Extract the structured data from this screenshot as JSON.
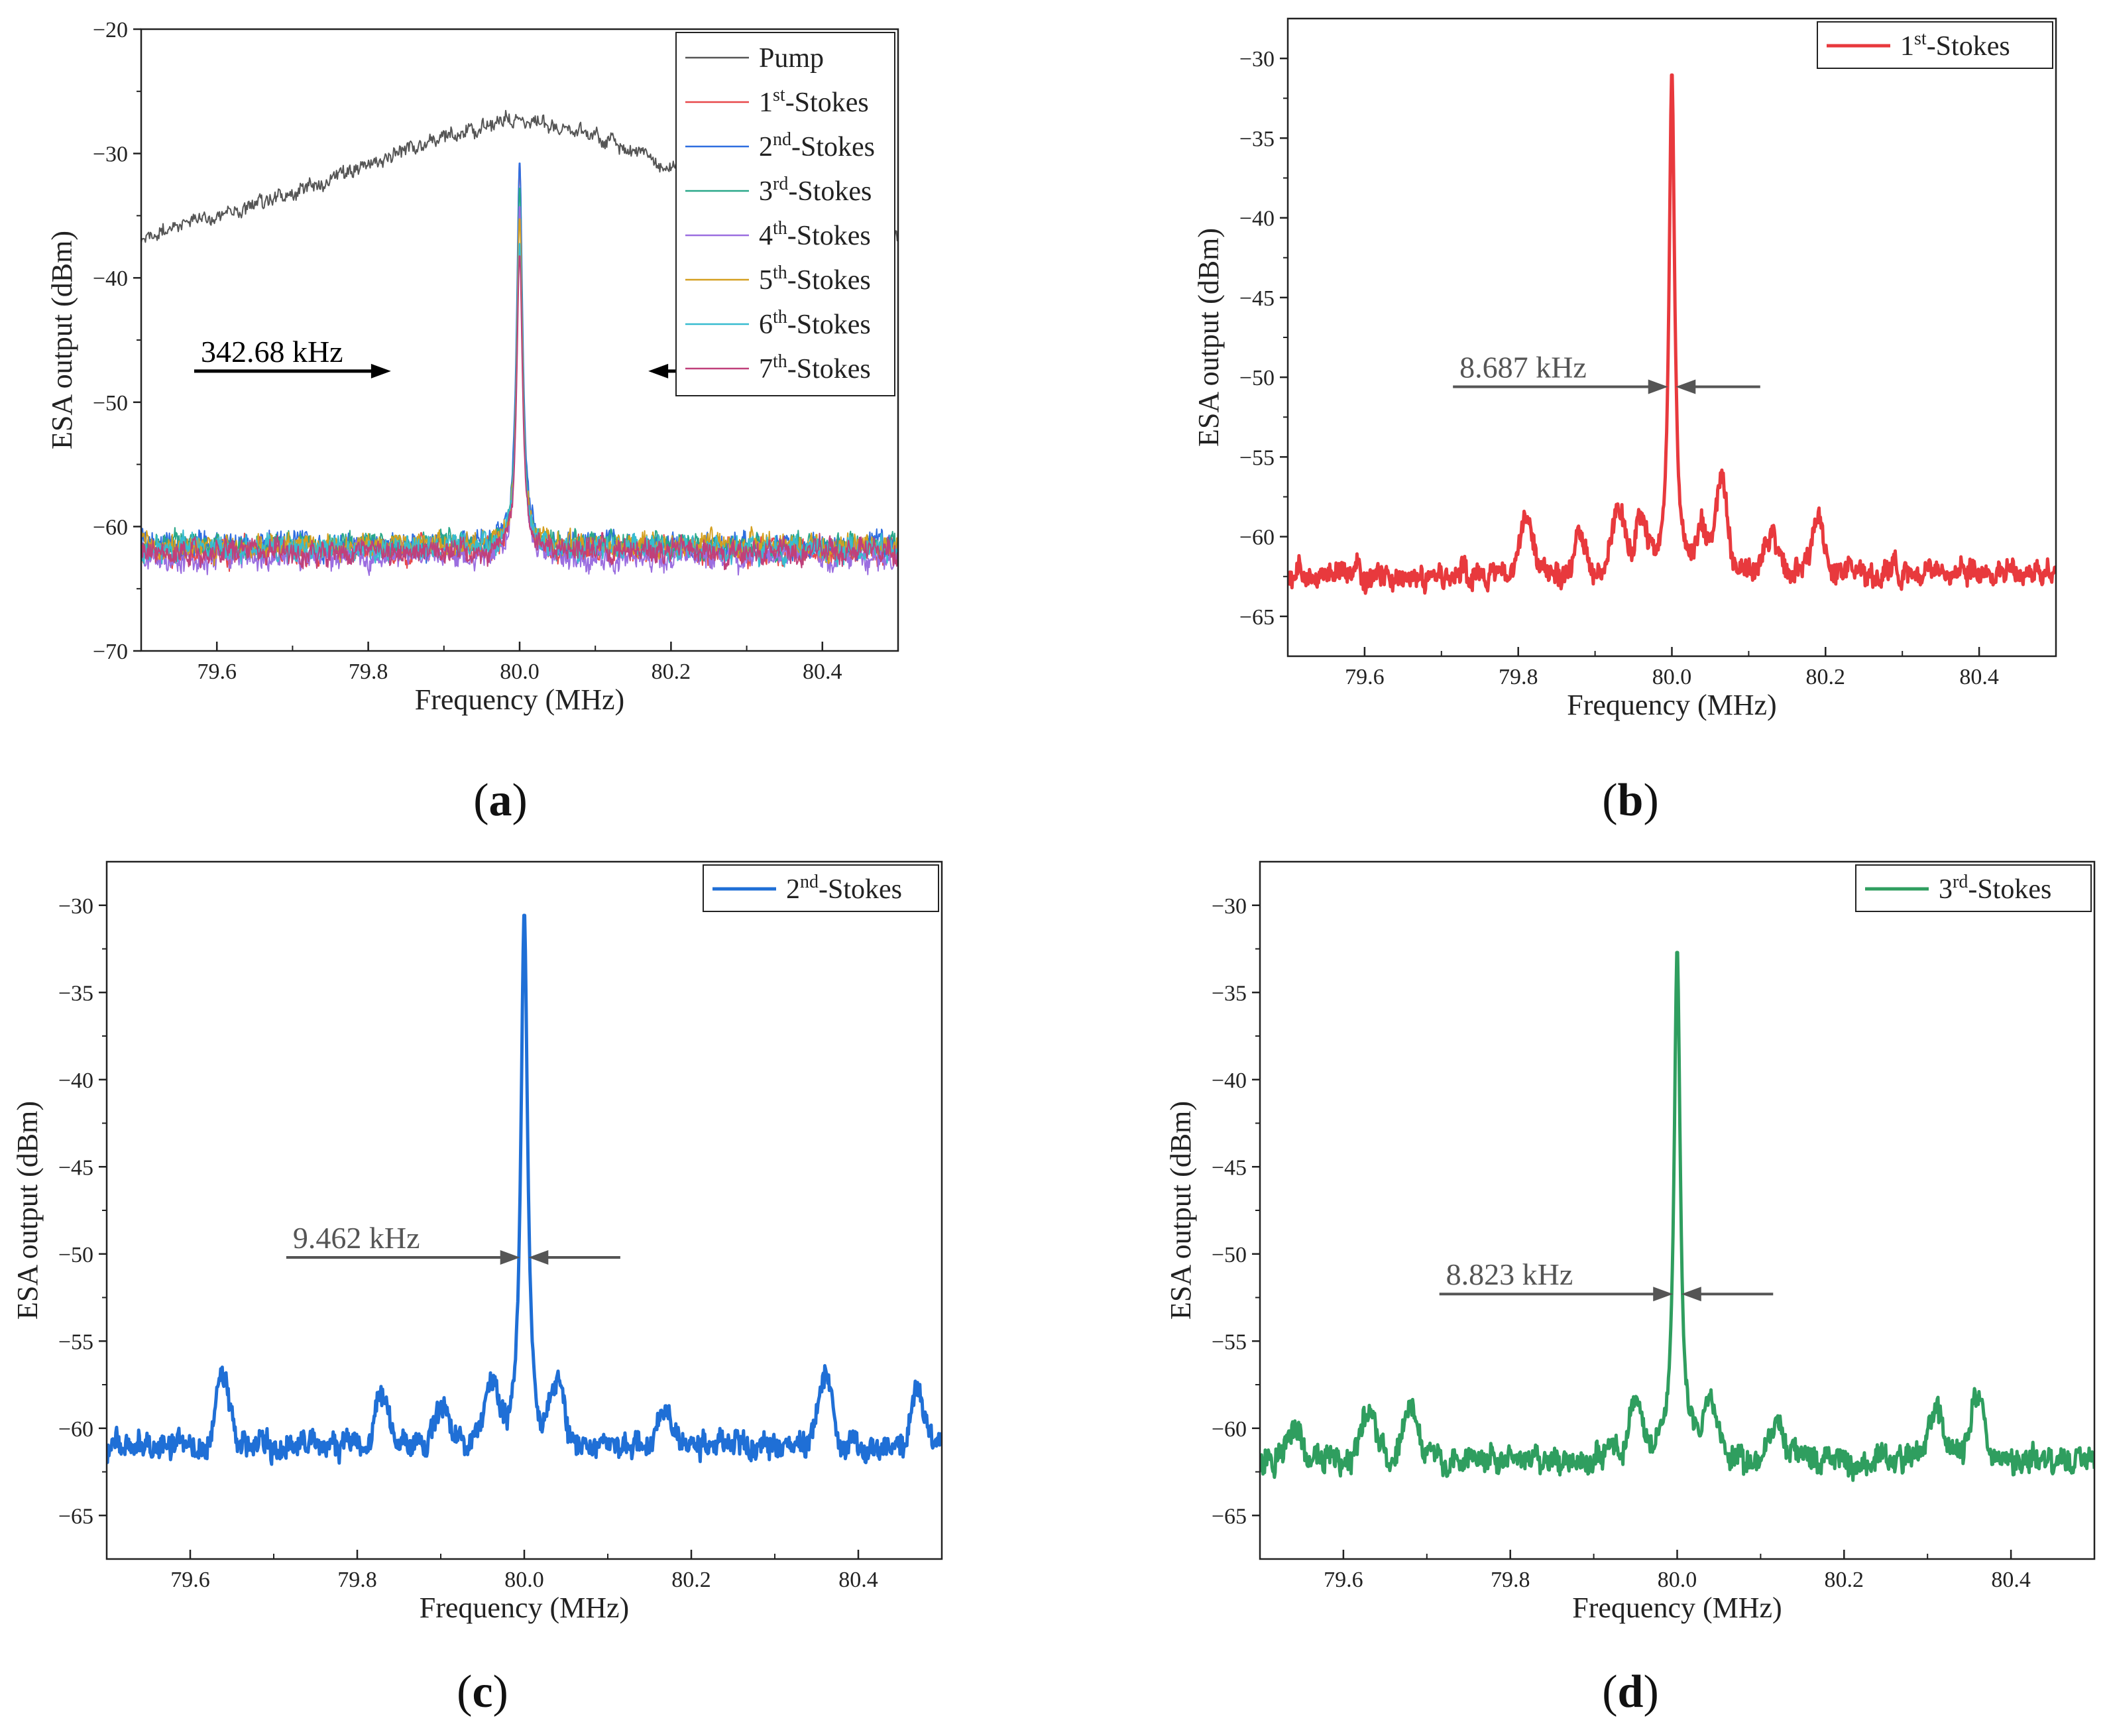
{
  "chart_data": [
    {
      "panel": "a",
      "panel_label_prefix": "(",
      "panel_label_letter": "a",
      "panel_label_suffix": ")",
      "type": "line",
      "xlabel": "Frequency (MHz)",
      "ylabel": "ESA output (dBm)",
      "xlim": [
        79.5,
        80.5
      ],
      "ylim": [
        -70,
        -20
      ],
      "xticks": [
        79.6,
        79.8,
        80.0,
        80.2,
        80.4
      ],
      "xtick_labels": [
        "79.6",
        "79.8",
        "80.0",
        "80.2",
        "80.4"
      ],
      "yticks": [
        -70,
        -60,
        -50,
        -40,
        -30,
        -20
      ],
      "ytick_labels": [
        "−70",
        "−60",
        "−50",
        "−40",
        "−30",
        "−20"
      ],
      "legend_position": "top-right",
      "annotation": {
        "text": "342.68 kHz",
        "level": -47.5,
        "left": 79.83,
        "right": 80.17,
        "color": "#000000"
      },
      "series": [
        {
          "name": "Pump",
          "base": "Pump",
          "sup": "",
          "suffix": "",
          "color": "#555555",
          "kind": "lorentz",
          "peak": -27.5,
          "center": 80.0,
          "fwhm": 0.3427,
          "floor": null,
          "noise": 0.9
        },
        {
          "name": "1st-Stokes",
          "base": "1",
          "sup": "st",
          "suffix": "-Stokes",
          "color": "#e8484a",
          "kind": "spike",
          "peak": -30.5,
          "center": 80.0,
          "fwhm": 0.0087,
          "floor": -62,
          "noise": 1.0
        },
        {
          "name": "2nd-Stokes",
          "base": "2",
          "sup": "nd",
          "suffix": "-Stokes",
          "color": "#2f6ee0",
          "kind": "spike",
          "peak": -30.5,
          "center": 80.0,
          "fwhm": 0.0095,
          "floor": -61.5,
          "noise": 1.0
        },
        {
          "name": "3rd-Stokes",
          "base": "3",
          "sup": "rd",
          "suffix": "-Stokes",
          "color": "#2aa889",
          "kind": "spike",
          "peak": -32.5,
          "center": 80.0,
          "fwhm": 0.0088,
          "floor": -61.5,
          "noise": 1.0
        },
        {
          "name": "4th-Stokes",
          "base": "4",
          "sup": "th",
          "suffix": "-Stokes",
          "color": "#9b6ee0",
          "kind": "spike",
          "peak": -34,
          "center": 80.0,
          "fwhm": 0.009,
          "floor": -62.5,
          "noise": 1.0
        },
        {
          "name": "5th-Stokes",
          "base": "5",
          "sup": "th",
          "suffix": "-Stokes",
          "color": "#d4a020",
          "kind": "spike",
          "peak": -35,
          "center": 80.0,
          "fwhm": 0.009,
          "floor": -61.5,
          "noise": 1.0
        },
        {
          "name": "6th-Stokes",
          "base": "6",
          "sup": "th",
          "suffix": "-Stokes",
          "color": "#38bcd0",
          "kind": "spike",
          "peak": -37,
          "center": 80.0,
          "fwhm": 0.009,
          "floor": -61.8,
          "noise": 1.0
        },
        {
          "name": "7th-Stokes",
          "base": "7",
          "sup": "th",
          "suffix": "-Stokes",
          "color": "#c0407a",
          "kind": "spike",
          "peak": -38,
          "center": 80.0,
          "fwhm": 0.009,
          "floor": -62,
          "noise": 1.0
        }
      ]
    },
    {
      "panel": "b",
      "panel_label_prefix": "(",
      "panel_label_letter": "b",
      "panel_label_suffix": ")",
      "type": "line",
      "xlabel": "Frequency (MHz)",
      "ylabel": "ESA output (dBm)",
      "xlim": [
        79.5,
        80.5
      ],
      "ylim": [
        -67.5,
        -27.5
      ],
      "xticks": [
        79.6,
        79.8,
        80.0,
        80.2,
        80.4
      ],
      "xtick_labels": [
        "79.6",
        "79.8",
        "80.0",
        "80.2",
        "80.4"
      ],
      "yticks": [
        -65,
        -60,
        -55,
        -50,
        -45,
        -40,
        -35,
        -30
      ],
      "ytick_labels": [
        "−65",
        "−60",
        "−55",
        "−50",
        "−45",
        "−40",
        "−35",
        "−30"
      ],
      "legend_position": "top-right",
      "annotation": {
        "text": "8.687 kHz",
        "level": -50.6,
        "left": 79.995,
        "right": 80.005,
        "color": "#555555"
      },
      "series": [
        {
          "name": "1st-Stokes",
          "base": "1",
          "sup": "st",
          "suffix": "-Stokes",
          "color": "#e8393d",
          "kind": "spike",
          "peak": -30.7,
          "center": 80.0,
          "fwhm": 0.0087,
          "floor": -62.3,
          "noise": 0.8,
          "bumps": [
            [
              79.81,
              3.6
            ],
            [
              79.88,
              2.5
            ],
            [
              79.93,
              4.2
            ],
            [
              79.96,
              3.6
            ],
            [
              80.04,
              2.5
            ],
            [
              80.065,
              5.6
            ],
            [
              80.13,
              2.5
            ],
            [
              80.19,
              3.0
            ]
          ]
        }
      ]
    },
    {
      "panel": "c",
      "panel_label_prefix": "(",
      "panel_label_letter": "c",
      "panel_label_suffix": ")",
      "type": "line",
      "xlabel": "Frequency (MHz)",
      "ylabel": "ESA output (dBm)",
      "xlim": [
        79.5,
        80.5
      ],
      "ylim": [
        -67.5,
        -27.5
      ],
      "xticks": [
        79.6,
        79.8,
        80.0,
        80.2,
        80.4
      ],
      "xtick_labels": [
        "79.6",
        "79.8",
        "80.0",
        "80.2",
        "80.4"
      ],
      "yticks": [
        -65,
        -60,
        -55,
        -50,
        -45,
        -40,
        -35,
        -30
      ],
      "ytick_labels": [
        "−65",
        "−60",
        "−55",
        "−50",
        "−45",
        "−40",
        "−35",
        "−30"
      ],
      "legend_position": "top-right",
      "annotation": {
        "text": "9.462 kHz",
        "level": -50.2,
        "left": 79.995,
        "right": 80.005,
        "color": "#555555"
      },
      "series": [
        {
          "name": "2nd-Stokes",
          "base": "2",
          "sup": "nd",
          "suffix": "-Stokes",
          "color": "#1f6fd6",
          "kind": "spike",
          "peak": -30.3,
          "center": 80.0,
          "fwhm": 0.0095,
          "floor": -61.0,
          "noise": 0.8,
          "bumps": [
            [
              79.64,
              4.0
            ],
            [
              79.83,
              3.0
            ],
            [
              79.9,
              2.0
            ],
            [
              79.96,
              3.5
            ],
            [
              80.04,
              3.5
            ],
            [
              80.17,
              2.0
            ],
            [
              80.36,
              4.0
            ],
            [
              80.47,
              3.0
            ]
          ]
        }
      ]
    },
    {
      "panel": "d",
      "panel_label_prefix": "(",
      "panel_label_letter": "d",
      "panel_label_suffix": ")",
      "type": "line",
      "xlabel": "Frequency (MHz)",
      "ylabel": "ESA output (dBm)",
      "xlim": [
        79.5,
        80.5
      ],
      "ylim": [
        -67.5,
        -27.5
      ],
      "xticks": [
        79.6,
        79.8,
        80.0,
        80.2,
        80.4
      ],
      "xtick_labels": [
        "79.6",
        "79.8",
        "80.0",
        "80.2",
        "80.4"
      ],
      "yticks": [
        -65,
        -60,
        -55,
        -50,
        -45,
        -40,
        -35,
        -30
      ],
      "ytick_labels": [
        "−65",
        "−60",
        "−55",
        "−50",
        "−45",
        "−40",
        "−35",
        "−30"
      ],
      "legend_position": "top-right",
      "annotation": {
        "text": "8.823 kHz",
        "level": -52.3,
        "left": 79.995,
        "right": 80.005,
        "color": "#555555"
      },
      "series": [
        {
          "name": "3rd-Stokes",
          "base": "3",
          "sup": "rd",
          "suffix": "-Stokes",
          "color": "#2f9e5f",
          "kind": "spike",
          "peak": -32.4,
          "center": 80.0,
          "fwhm": 0.0088,
          "floor": -61.8,
          "noise": 0.8,
          "bumps": [
            [
              79.54,
              2.0
            ],
            [
              79.63,
              3.0
            ],
            [
              79.68,
              3.5
            ],
            [
              79.95,
              3.5
            ],
            [
              80.04,
              3.5
            ],
            [
              80.12,
              2.0
            ],
            [
              80.31,
              3.0
            ],
            [
              80.36,
              3.5
            ]
          ]
        }
      ]
    }
  ]
}
